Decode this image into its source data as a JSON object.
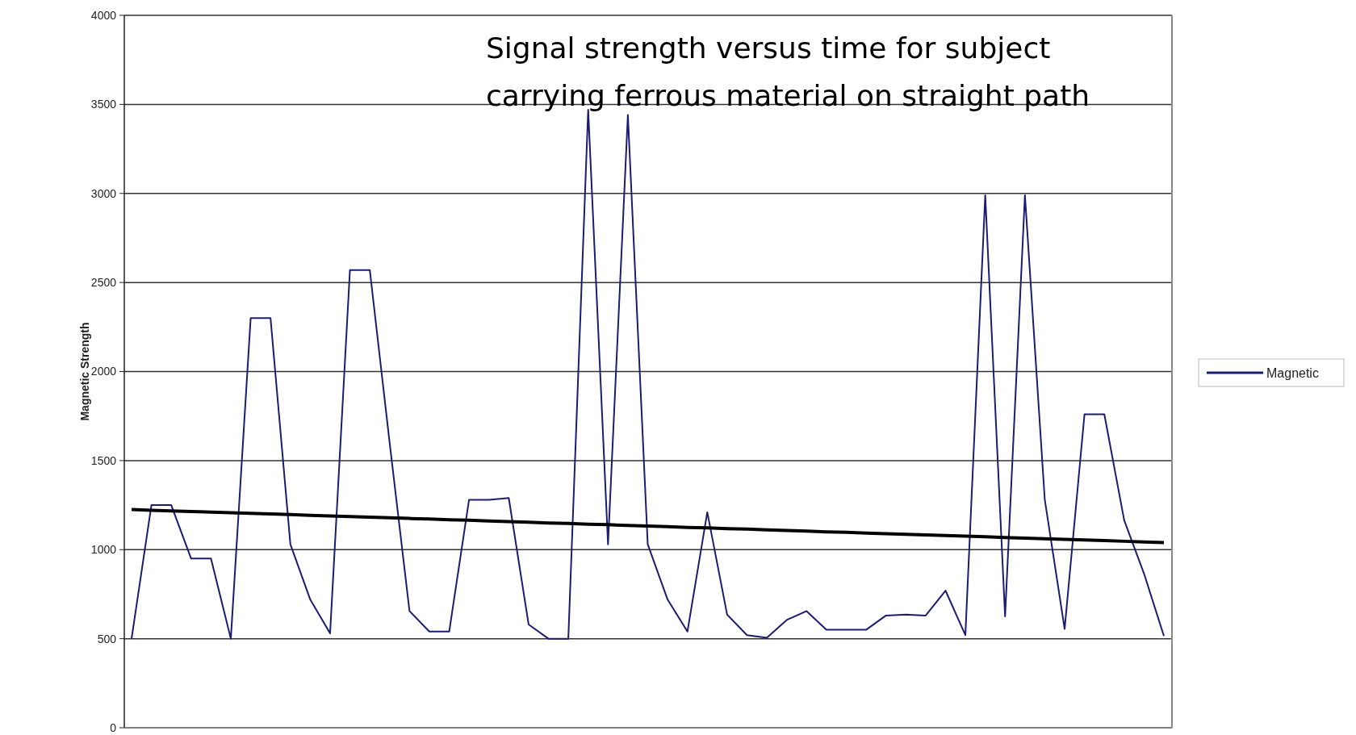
{
  "chart_data": {
    "type": "line",
    "title": "Signal strength versus time for subject carrying ferrous material on straight path",
    "ylabel": "Magnetic Strength",
    "categories": [
      null,
      null,
      null,
      null,
      null,
      null,
      null,
      null,
      null,
      null,
      null,
      null,
      null,
      null,
      null,
      null,
      null,
      null,
      null,
      null,
      null,
      null,
      null,
      null,
      null,
      null,
      null,
      null,
      null,
      null,
      null,
      null,
      null,
      null,
      null,
      null,
      null,
      null,
      null,
      null,
      null,
      null,
      null,
      null,
      null,
      null,
      null,
      null,
      null,
      null,
      null,
      null,
      null
    ],
    "ylim": [
      0,
      4000
    ],
    "yticks": [
      0,
      500,
      1000,
      1500,
      2000,
      2500,
      3000,
      3500,
      4000
    ],
    "tick_labels": "y",
    "grid": "y",
    "legend": "right",
    "marker": "none",
    "line_style": "solid",
    "series": [
      {
        "name": "Magnetic",
        "color": "#1c1c72",
        "values": [
          500,
          1250,
          1250,
          950,
          950,
          500,
          2300,
          2300,
          1030,
          720,
          530,
          2570,
          2570,
          1600,
          655,
          540,
          540,
          1280,
          1280,
          1290,
          580,
          500,
          500,
          3470,
          1030,
          3440,
          1030,
          720,
          540,
          1210,
          635,
          520,
          505,
          605,
          655,
          550,
          550,
          550,
          630,
          635,
          630,
          770,
          520,
          2990,
          625,
          2990,
          1280,
          555,
          1760,
          1760,
          1165,
          865,
          515
        ]
      },
      {
        "type": "line",
        "color": "#000000",
        "values": [
          1225,
          1221,
          1218,
          1214,
          1211,
          1207,
          1204,
          1200,
          1197,
          1193,
          1189,
          1186,
          1182,
          1179,
          1175,
          1172,
          1168,
          1165,
          1161,
          1157,
          1154,
          1150,
          1147,
          1143,
          1140,
          1136,
          1133,
          1129,
          1125,
          1122,
          1118,
          1115,
          1111,
          1108,
          1104,
          1100,
          1097,
          1093,
          1090,
          1086,
          1083,
          1079,
          1076,
          1072,
          1068,
          1065,
          1061,
          1058,
          1054,
          1051,
          1047,
          1043,
          1040
        ]
      }
    ]
  }
}
